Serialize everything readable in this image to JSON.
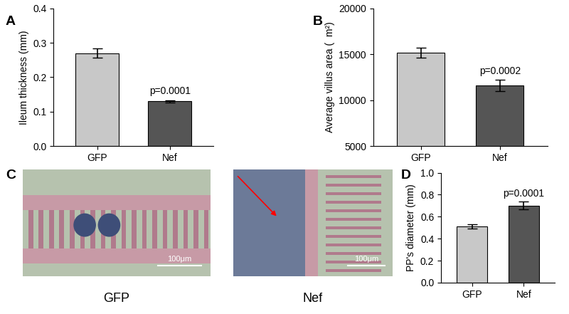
{
  "chart_data": [
    {
      "type": "bar",
      "title": "A",
      "y_label": "Ileum thickness (mm)",
      "categories": [
        "GFP",
        "Nef"
      ],
      "values": [
        0.27,
        0.13
      ],
      "errors": [
        0.013,
        0.003
      ],
      "colors": [
        "#c8c8c8",
        "#555555"
      ],
      "ylim": [
        0.0,
        0.4
      ],
      "yticks": [
        {
          "value": 0,
          "label": "0.0"
        },
        {
          "value": 0.1,
          "label": "0.1"
        },
        {
          "value": 0.2,
          "label": "0.2"
        },
        {
          "value": 0.3,
          "label": "0.3"
        },
        {
          "value": 0.4,
          "label": "0.4"
        }
      ],
      "annotations": [
        {
          "category": "Nef",
          "text": "p=0.0001"
        }
      ]
    },
    {
      "type": "bar",
      "title": "B",
      "y_label": "Average villus area (  m²)",
      "categories": [
        "GFP",
        "Nef"
      ],
      "values": [
        15200,
        11600
      ],
      "errors": [
        550,
        600
      ],
      "colors": [
        "#c8c8c8",
        "#555555"
      ],
      "ylim": [
        5000,
        20000
      ],
      "yticks": [
        5000,
        10000,
        15000,
        20000
      ],
      "annotations": [
        {
          "category": "Nef",
          "text": "p=0.0002"
        }
      ]
    },
    {
      "type": "bar",
      "title": "D",
      "y_label": "PP's diameter (mm)",
      "categories": [
        "GFP",
        "Nef"
      ],
      "values": [
        0.51,
        0.7
      ],
      "errors": [
        0.02,
        0.035
      ],
      "colors": [
        "#c8c8c8",
        "#555555"
      ],
      "ylim": [
        0.0,
        1.0
      ],
      "yticks": [
        {
          "value": 0,
          "label": "0.0"
        },
        {
          "value": 0.2,
          "label": "0.2"
        },
        {
          "value": 0.4,
          "label": "0.4"
        },
        {
          "value": 0.6,
          "label": "0.6"
        },
        {
          "value": 0.8,
          "label": "0.8"
        },
        {
          "value": 1.0,
          "label": "1.0"
        }
      ],
      "annotations": [
        {
          "category": "Nef",
          "text": "p=0.0001"
        }
      ]
    }
  ],
  "images": {
    "title": "C",
    "panels": [
      {
        "label": "GFP",
        "scale_bar": "100μm"
      },
      {
        "label": "Nef",
        "scale_bar": "100μm"
      }
    ]
  }
}
